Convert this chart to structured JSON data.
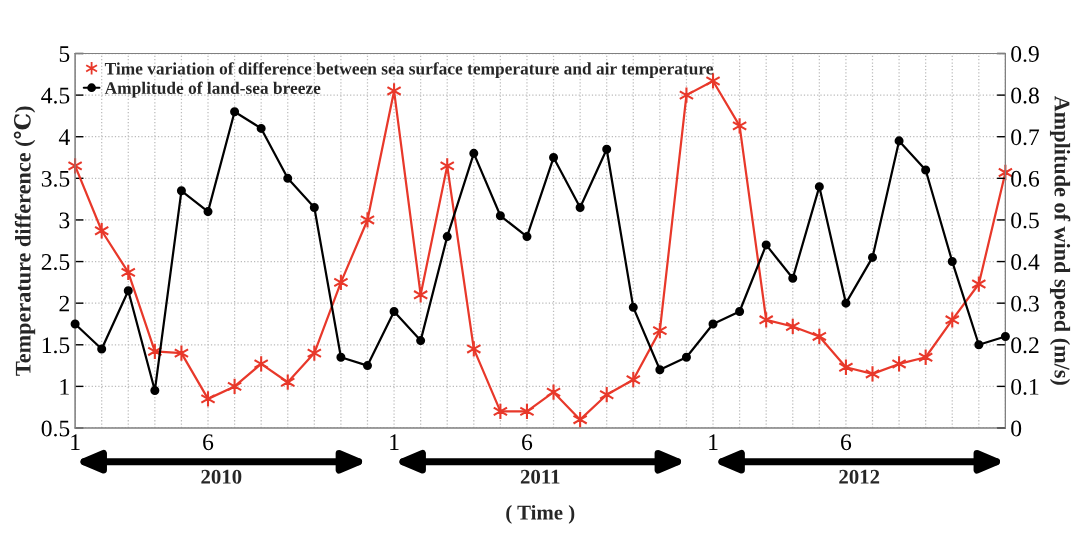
{
  "chart_data": {
    "type": "line",
    "xlabel": "( Time )",
    "ylabel": "Temperature difference (℃)",
    "y2label": "Amplitude of wind speed (m/s)",
    "categories": [
      "1",
      null,
      null,
      null,
      null,
      "6",
      null,
      null,
      null,
      null,
      null,
      null,
      "1",
      null,
      null,
      null,
      null,
      "6",
      null,
      null,
      null,
      null,
      null,
      null,
      "1",
      null,
      null,
      null,
      null,
      "6",
      null,
      null,
      null,
      null,
      null,
      null
    ],
    "series": [
      {
        "name": "Time variation of difference between sea surface temperature and air temperature",
        "color": "#e8382a",
        "marker": "cross",
        "values": [
          3.65,
          2.87,
          2.37,
          1.42,
          1.4,
          0.85,
          1.0,
          1.27,
          1.05,
          1.4,
          2.25,
          3.0,
          4.55,
          2.1,
          3.65,
          1.45,
          0.7,
          0.7,
          0.93,
          0.6,
          0.9,
          1.08,
          1.67,
          4.5,
          4.67,
          4.13,
          1.8,
          1.72,
          1.6,
          1.23,
          1.15,
          1.27,
          1.35,
          1.8,
          2.23,
          3.57
        ]
      },
      {
        "name": "Amplitude of land-sea breeze",
        "color": "#000000",
        "marker": "circle",
        "axis": "y2",
        "values": [
          0.25,
          0.19,
          0.33,
          0.09,
          0.57,
          0.52,
          0.76,
          0.72,
          0.6,
          0.53,
          0.17,
          0.15,
          0.28,
          0.21,
          0.46,
          0.66,
          0.51,
          0.46,
          0.65,
          0.53,
          0.67,
          0.29,
          0.14,
          0.17,
          0.25,
          0.28,
          0.44,
          0.36,
          0.58,
          0.3,
          0.41,
          0.69,
          0.62,
          0.4,
          0.2,
          0.22
        ]
      }
    ],
    "ylim": [
      0.5,
      5
    ],
    "yticks": [
      0.5,
      1,
      1.5,
      2,
      2.5,
      3,
      3.5,
      4,
      4.5,
      5
    ],
    "y2lim": [
      0,
      0.9
    ],
    "y2ticks": [
      0,
      0.1,
      0.2,
      0.3,
      0.4,
      0.5,
      0.6,
      0.7,
      0.8,
      0.9
    ],
    "grid": true,
    "legend": "top left",
    "line_style": "solid",
    "annotations": [
      "2010",
      "2011",
      "2012"
    ]
  }
}
